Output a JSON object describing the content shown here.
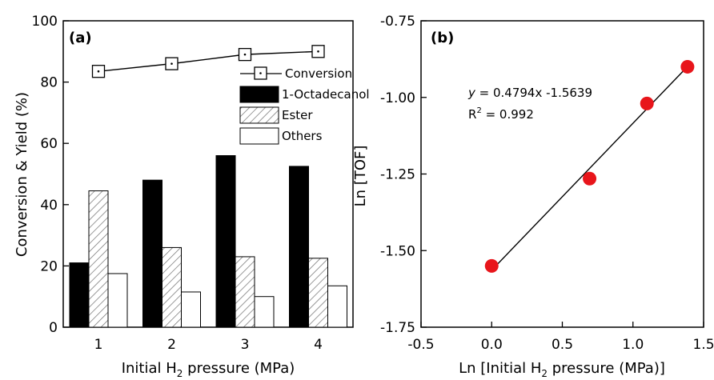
{
  "chart_data": [
    {
      "type": "bar",
      "panel_label": "(a)",
      "categories": [
        "1",
        "2",
        "3",
        "4"
      ],
      "xlabel_parts": [
        "Initial H",
        "2",
        " pressure (MPa)"
      ],
      "ylabel": "Conversion & Yield (%)",
      "ylim": [
        0,
        100
      ],
      "yticks": [
        "0",
        "20",
        "40",
        "60",
        "80",
        "100"
      ],
      "series": [
        {
          "name": "1-Octadecanol",
          "kind": "bar",
          "pattern": "solid-black",
          "values": [
            21,
            48,
            56,
            52.5
          ]
        },
        {
          "name": "Ester",
          "kind": "bar",
          "pattern": "hatched",
          "values": [
            44.5,
            26,
            23,
            22.5
          ]
        },
        {
          "name": "Others",
          "kind": "bar",
          "pattern": "white",
          "values": [
            17.5,
            11.5,
            10,
            13.5
          ]
        },
        {
          "name": "Conversion",
          "kind": "line",
          "marker": "square-dot",
          "values": [
            83.5,
            86,
            89,
            90
          ]
        }
      ],
      "legend": [
        "Conversion",
        "1-Octadecanol",
        "Ester",
        "Others"
      ],
      "legend_placement": "top-right",
      "grid": false
    },
    {
      "type": "scatter",
      "panel_label": "(b)",
      "xlabel_parts": [
        "Ln [Initial H",
        "2",
        " pressure (MPa)]"
      ],
      "ylabel": "Ln [TOF]",
      "xlim": [
        -0.5,
        1.5
      ],
      "ylim": [
        -1.75,
        -0.75
      ],
      "xticks": [
        "-0.5",
        "0.0",
        "0.5",
        "1.0",
        "1.5"
      ],
      "yticks": [
        "-0.75",
        "-1.00",
        "-1.25",
        "-1.50",
        "-1.75"
      ],
      "points": [
        {
          "x": 0.0,
          "y": -1.55
        },
        {
          "x": 0.693,
          "y": -1.265
        },
        {
          "x": 1.099,
          "y": -1.02
        },
        {
          "x": 1.386,
          "y": -0.9
        }
      ],
      "point_color": "#e8151b",
      "fit": {
        "slope": 0.4794,
        "intercept": -1.5639
      },
      "equation_parts": [
        "y",
        " = 0.4794x -1.5639"
      ],
      "r2_parts": [
        "R",
        "2",
        " = 0.992"
      ],
      "grid": false
    }
  ]
}
